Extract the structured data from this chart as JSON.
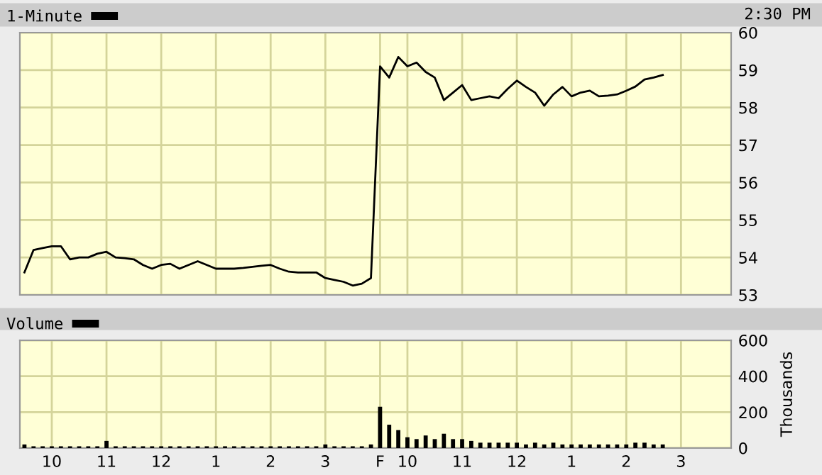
{
  "chart_data": [
    {
      "type": "line",
      "annotations": [
        "2:30 PM"
      ],
      "legend": "top left",
      "grid": true,
      "ylim": [
        53,
        60
      ],
      "yticks": [
        53,
        54,
        55,
        56,
        57,
        58,
        59,
        60
      ],
      "categories": [
        null,
        null,
        null,
        null,
        null,
        null,
        null,
        null,
        null,
        null,
        null,
        null,
        null,
        null,
        null,
        null,
        null,
        null,
        null,
        null,
        null,
        null,
        null,
        null,
        null,
        null,
        null,
        null,
        null,
        null,
        null,
        null,
        null,
        null,
        null,
        null,
        null,
        null,
        null,
        null,
        null,
        null,
        null,
        null,
        null,
        null,
        null,
        null,
        null,
        null,
        null,
        null,
        null,
        null,
        null,
        null,
        null,
        null,
        null,
        null,
        null,
        null,
        null,
        null,
        null,
        null,
        null,
        null,
        null,
        null,
        null,
        null,
        null,
        null,
        null,
        null,
        null,
        null
      ],
      "series": [
        {
          "name": "1-Minute",
          "color": "#000000",
          "values": [
            53.6,
            54.2,
            54.25,
            54.3,
            54.3,
            53.95,
            54.0,
            54.0,
            54.1,
            54.15,
            54.0,
            53.98,
            53.95,
            53.8,
            53.7,
            53.8,
            53.83,
            53.7,
            53.8,
            53.9,
            53.8,
            53.7,
            53.7,
            53.7,
            53.72,
            53.75,
            53.78,
            53.8,
            53.7,
            53.62,
            53.6,
            53.6,
            53.6,
            53.45,
            53.4,
            53.35,
            53.25,
            53.3,
            53.45,
            59.1,
            58.8,
            59.35,
            59.1,
            59.2,
            58.95,
            58.8,
            58.2,
            58.4,
            58.6,
            58.2,
            58.25,
            58.3,
            58.25,
            58.5,
            58.72,
            58.55,
            58.4,
            58.05,
            58.35,
            58.55,
            58.3,
            58.4,
            58.45,
            58.3,
            58.32,
            58.35,
            58.45,
            58.56,
            58.75,
            58.8,
            58.87,
            null,
            null,
            null,
            null,
            null,
            null,
            null
          ]
        }
      ]
    },
    {
      "type": "bar",
      "ylabel": "Thousands",
      "legend": "top left",
      "grid": true,
      "ylim": [
        0,
        600
      ],
      "yticks": [
        0,
        200,
        400,
        600
      ],
      "categories": [
        null,
        null,
        null,
        "10",
        null,
        null,
        null,
        null,
        null,
        "11",
        null,
        null,
        null,
        null,
        null,
        "12",
        null,
        null,
        null,
        null,
        null,
        "1",
        null,
        null,
        null,
        null,
        null,
        "2",
        null,
        null,
        null,
        null,
        null,
        "3",
        null,
        null,
        null,
        null,
        null,
        "F",
        null,
        null,
        "10",
        null,
        null,
        null,
        null,
        null,
        "11",
        null,
        null,
        null,
        null,
        null,
        "12",
        null,
        null,
        null,
        null,
        null,
        "1",
        null,
        null,
        null,
        null,
        null,
        "2",
        null,
        null,
        null,
        null,
        null,
        "3",
        null,
        null,
        null,
        null,
        null
      ],
      "series": [
        {
          "name": "Volume",
          "color": "#000000",
          "values": [
            20,
            10,
            10,
            10,
            10,
            10,
            10,
            10,
            10,
            40,
            10,
            10,
            10,
            10,
            10,
            10,
            10,
            10,
            10,
            10,
            10,
            10,
            10,
            10,
            10,
            10,
            10,
            10,
            10,
            10,
            10,
            10,
            10,
            20,
            10,
            10,
            10,
            10,
            20,
            230,
            130,
            100,
            60,
            50,
            70,
            50,
            80,
            50,
            50,
            40,
            30,
            30,
            30,
            30,
            30,
            20,
            30,
            20,
            30,
            20,
            20,
            20,
            20,
            20,
            20,
            20,
            20,
            30,
            30,
            20,
            20,
            null,
            null,
            null,
            null,
            null,
            null,
            null
          ]
        }
      ]
    }
  ]
}
